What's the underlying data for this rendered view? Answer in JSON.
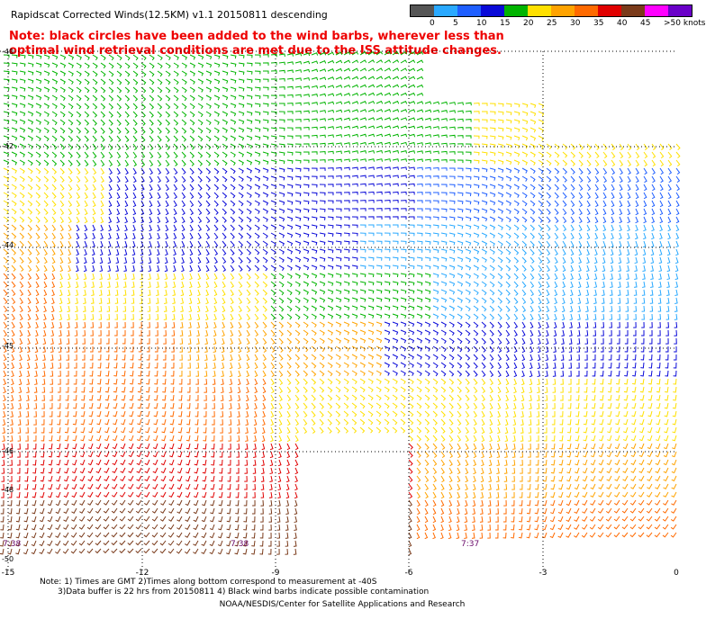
{
  "title": "Rapidscat Corrected Winds(12.5KM) v1.1 20150811 descending",
  "note": "Note: black circles have been added to the wind barbs, wherever less than optimal wind retrieval conditions are met due to the ISS attitude changes.",
  "legend": {
    "labels": [
      "0",
      "5",
      "10",
      "15",
      "20",
      "25",
      "30",
      "35",
      "40",
      "45",
      ">50 knots"
    ],
    "colors": [
      "#555555",
      "#2aa9ff",
      "#1f5fff",
      "#0a0ad8",
      "#00b400",
      "#ffe000",
      "#ffa300",
      "#ff6a00",
      "#e00000",
      "#7a3a1a",
      "#ff00ff",
      "#6a00c8"
    ]
  },
  "axes": {
    "lat_labels": [
      "-40",
      "-42",
      "-44",
      "-45",
      "-46",
      "-48",
      "-50"
    ],
    "lon_labels": [
      "-15",
      "-12",
      "-9",
      "-6",
      "-3",
      "0"
    ]
  },
  "time_labels": [
    "7:38",
    "7:38",
    "7:37"
  ],
  "footnotes": {
    "line1": "Note: 1) Times are GMT 2)Times along bottom correspond to measurement at -40S",
    "line2": "3)Data buffer is 22 hrs from 20150811 4) Black wind barbs indicate possible contamination"
  },
  "credit": "NOAA/NESDIS/Center for Satellite Applications and Research"
}
